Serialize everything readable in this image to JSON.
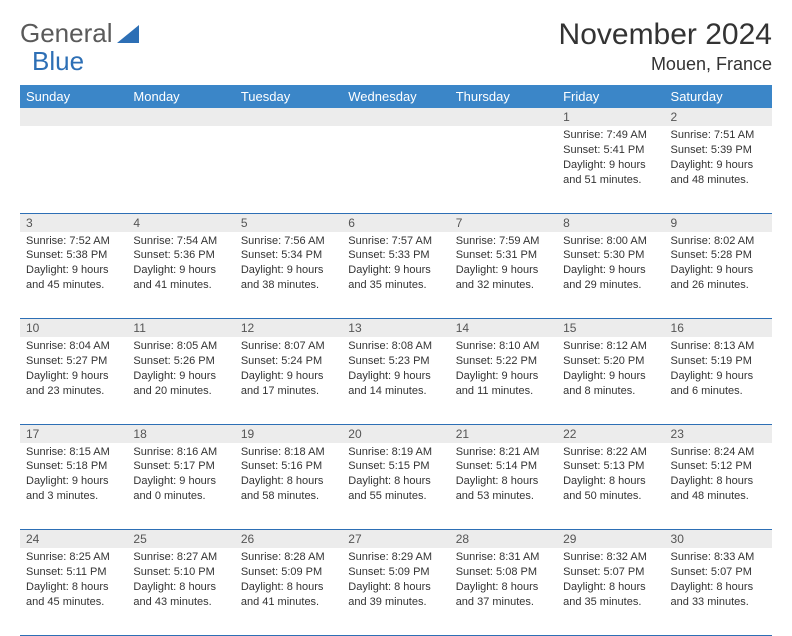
{
  "logo": {
    "text1": "General",
    "text2": "Blue"
  },
  "title": {
    "month_year": "November 2024",
    "location": "Mouen, France"
  },
  "headers": [
    "Sunday",
    "Monday",
    "Tuesday",
    "Wednesday",
    "Thursday",
    "Friday",
    "Saturday"
  ],
  "colors": {
    "header_bg": "#3b86c8",
    "header_fg": "#ffffff",
    "daynum_bg": "#ececec",
    "border": "#2d6fb5",
    "logo_gray": "#5a5a5a",
    "logo_blue": "#2d6fb5"
  },
  "weeks": [
    {
      "nums": [
        "",
        "",
        "",
        "",
        "",
        "1",
        "2"
      ],
      "cells": [
        null,
        null,
        null,
        null,
        null,
        {
          "sunrise": "7:49 AM",
          "sunset": "5:41 PM",
          "daylight": "9 hours and 51 minutes."
        },
        {
          "sunrise": "7:51 AM",
          "sunset": "5:39 PM",
          "daylight": "9 hours and 48 minutes."
        }
      ]
    },
    {
      "nums": [
        "3",
        "4",
        "5",
        "6",
        "7",
        "8",
        "9"
      ],
      "cells": [
        {
          "sunrise": "7:52 AM",
          "sunset": "5:38 PM",
          "daylight": "9 hours and 45 minutes."
        },
        {
          "sunrise": "7:54 AM",
          "sunset": "5:36 PM",
          "daylight": "9 hours and 41 minutes."
        },
        {
          "sunrise": "7:56 AM",
          "sunset": "5:34 PM",
          "daylight": "9 hours and 38 minutes."
        },
        {
          "sunrise": "7:57 AM",
          "sunset": "5:33 PM",
          "daylight": "9 hours and 35 minutes."
        },
        {
          "sunrise": "7:59 AM",
          "sunset": "5:31 PM",
          "daylight": "9 hours and 32 minutes."
        },
        {
          "sunrise": "8:00 AM",
          "sunset": "5:30 PM",
          "daylight": "9 hours and 29 minutes."
        },
        {
          "sunrise": "8:02 AM",
          "sunset": "5:28 PM",
          "daylight": "9 hours and 26 minutes."
        }
      ]
    },
    {
      "nums": [
        "10",
        "11",
        "12",
        "13",
        "14",
        "15",
        "16"
      ],
      "cells": [
        {
          "sunrise": "8:04 AM",
          "sunset": "5:27 PM",
          "daylight": "9 hours and 23 minutes."
        },
        {
          "sunrise": "8:05 AM",
          "sunset": "5:26 PM",
          "daylight": "9 hours and 20 minutes."
        },
        {
          "sunrise": "8:07 AM",
          "sunset": "5:24 PM",
          "daylight": "9 hours and 17 minutes."
        },
        {
          "sunrise": "8:08 AM",
          "sunset": "5:23 PM",
          "daylight": "9 hours and 14 minutes."
        },
        {
          "sunrise": "8:10 AM",
          "sunset": "5:22 PM",
          "daylight": "9 hours and 11 minutes."
        },
        {
          "sunrise": "8:12 AM",
          "sunset": "5:20 PM",
          "daylight": "9 hours and 8 minutes."
        },
        {
          "sunrise": "8:13 AM",
          "sunset": "5:19 PM",
          "daylight": "9 hours and 6 minutes."
        }
      ]
    },
    {
      "nums": [
        "17",
        "18",
        "19",
        "20",
        "21",
        "22",
        "23"
      ],
      "cells": [
        {
          "sunrise": "8:15 AM",
          "sunset": "5:18 PM",
          "daylight": "9 hours and 3 minutes."
        },
        {
          "sunrise": "8:16 AM",
          "sunset": "5:17 PM",
          "daylight": "9 hours and 0 minutes."
        },
        {
          "sunrise": "8:18 AM",
          "sunset": "5:16 PM",
          "daylight": "8 hours and 58 minutes."
        },
        {
          "sunrise": "8:19 AM",
          "sunset": "5:15 PM",
          "daylight": "8 hours and 55 minutes."
        },
        {
          "sunrise": "8:21 AM",
          "sunset": "5:14 PM",
          "daylight": "8 hours and 53 minutes."
        },
        {
          "sunrise": "8:22 AM",
          "sunset": "5:13 PM",
          "daylight": "8 hours and 50 minutes."
        },
        {
          "sunrise": "8:24 AM",
          "sunset": "5:12 PM",
          "daylight": "8 hours and 48 minutes."
        }
      ]
    },
    {
      "nums": [
        "24",
        "25",
        "26",
        "27",
        "28",
        "29",
        "30"
      ],
      "cells": [
        {
          "sunrise": "8:25 AM",
          "sunset": "5:11 PM",
          "daylight": "8 hours and 45 minutes."
        },
        {
          "sunrise": "8:27 AM",
          "sunset": "5:10 PM",
          "daylight": "8 hours and 43 minutes."
        },
        {
          "sunrise": "8:28 AM",
          "sunset": "5:09 PM",
          "daylight": "8 hours and 41 minutes."
        },
        {
          "sunrise": "8:29 AM",
          "sunset": "5:09 PM",
          "daylight": "8 hours and 39 minutes."
        },
        {
          "sunrise": "8:31 AM",
          "sunset": "5:08 PM",
          "daylight": "8 hours and 37 minutes."
        },
        {
          "sunrise": "8:32 AM",
          "sunset": "5:07 PM",
          "daylight": "8 hours and 35 minutes."
        },
        {
          "sunrise": "8:33 AM",
          "sunset": "5:07 PM",
          "daylight": "8 hours and 33 minutes."
        }
      ]
    }
  ],
  "labels": {
    "sunrise": "Sunrise: ",
    "sunset": "Sunset: ",
    "daylight": "Daylight: "
  }
}
